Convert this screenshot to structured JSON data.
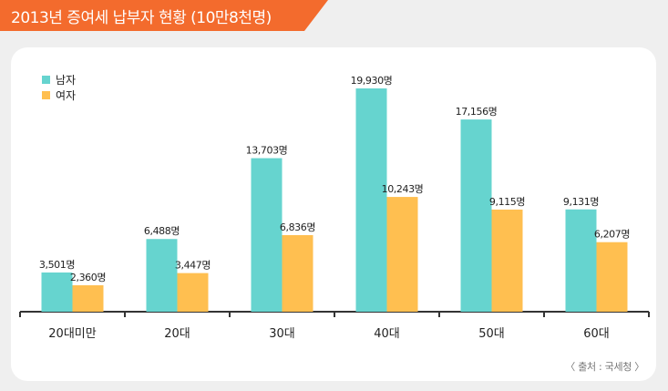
{
  "header": {
    "title": "2013년 증여세 납부자 현황 (10만8천명)"
  },
  "source": "〈 출처 : 국세청 〉",
  "colors": {
    "accent": "#f36b2d",
    "male": "#66d4cf",
    "female": "#ffbf50",
    "axis": "#333333"
  },
  "chart_data": {
    "type": "bar",
    "title": "2013년 증여세 납부자 현황 (10만8천명)",
    "categories": [
      "20대미만",
      "20대",
      "30대",
      "40대",
      "50대",
      "60대"
    ],
    "series": [
      {
        "name": "남자",
        "values": [
          3501,
          6488,
          13703,
          19930,
          17156,
          9131
        ],
        "labels": [
          "3,501명",
          "6,488명",
          "13,703명",
          "19,930명",
          "17,156명",
          "9,131명"
        ]
      },
      {
        "name": "여자",
        "values": [
          2360,
          3447,
          6836,
          10243,
          9115,
          6207
        ],
        "labels": [
          "2,360명",
          "3,447명",
          "6,836명",
          "10,243명",
          "9,115명",
          "6,207명"
        ]
      }
    ],
    "legend": "top-left",
    "grid": false
  }
}
